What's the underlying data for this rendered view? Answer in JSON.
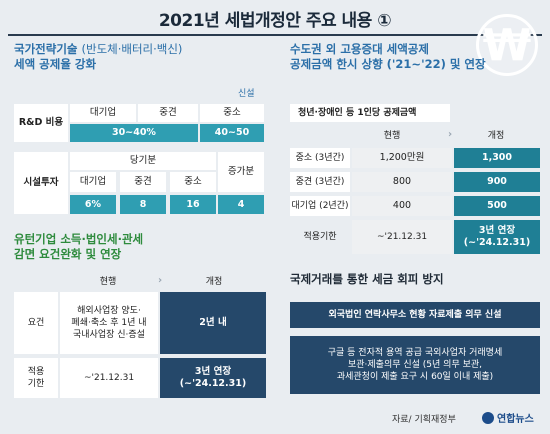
{
  "title": "2021년 세법개정안 주요 내용 ①",
  "left_top": {
    "title_line1_a": "국가전략기술",
    "title_line1_b": "(반도체·배터리·백신)",
    "title_line2": "세액 공제율 강화",
    "tag": "신설",
    "rd": {
      "label": "R&D 비용",
      "headers": [
        "대기업",
        "중견",
        "중소"
      ],
      "v1": "30~40%",
      "v2": "40~50"
    },
    "facility": {
      "label": "시설투자",
      "group_header": "당기분",
      "extra_header": "증가분",
      "headers": [
        "대기업",
        "중견",
        "중소"
      ],
      "values": [
        "6%",
        "8",
        "16",
        "4"
      ]
    }
  },
  "left_bottom": {
    "title_line1": "유턴기업 소득·법인세·관세",
    "title_line2": "감면 요건완화 및 연장",
    "col_current": "현행",
    "col_revised": "개정",
    "rows": [
      {
        "label": "요건",
        "current": "해외사업장 양도·\n폐쇄·축소 후 1년 내\n국내사업장 신·증설",
        "revised": "2년 내"
      },
      {
        "label": "적용\n기한",
        "current": "~'21.12.31",
        "revised": "3년 연장\n(~'24.12.31)"
      }
    ]
  },
  "right_top": {
    "title_line1": "수도권 외 고용증대 세액공제",
    "title_line2": "공제금액 한시 상향 ('21~'22) 및 연장",
    "subheader": "청년·장애인 등 1인당 공제금액",
    "col_current": "현행",
    "col_revised": "개정",
    "rows": [
      {
        "label": "중소 (3년간)",
        "current": "1,200만원",
        "revised": "1,300"
      },
      {
        "label": "중견 (3년간)",
        "current": "800",
        "revised": "900"
      },
      {
        "label": "대기업 (2년간)",
        "current": "400",
        "revised": "500"
      },
      {
        "label": "적용기한",
        "current": "~'21.12.31",
        "revised": "3년 연장\n(~'24.12.31)"
      }
    ]
  },
  "right_bottom": {
    "title": "국제거래를 통한 세금 회피 방지",
    "box1": "외국법인 연락사무소 현황 자료제출 의무 신설",
    "box2": "구글 등 전자적 용역 공급 국외사업자 거래명세\n보관·제출의무 신설 (5년 의무 보관,\n과세관청이 제출 요구 시 60일 이내 제출)"
  },
  "footer": {
    "source": "자료/ 기획재정부",
    "logo": "연합뉴스"
  },
  "icon": {
    "won": "₩"
  }
}
